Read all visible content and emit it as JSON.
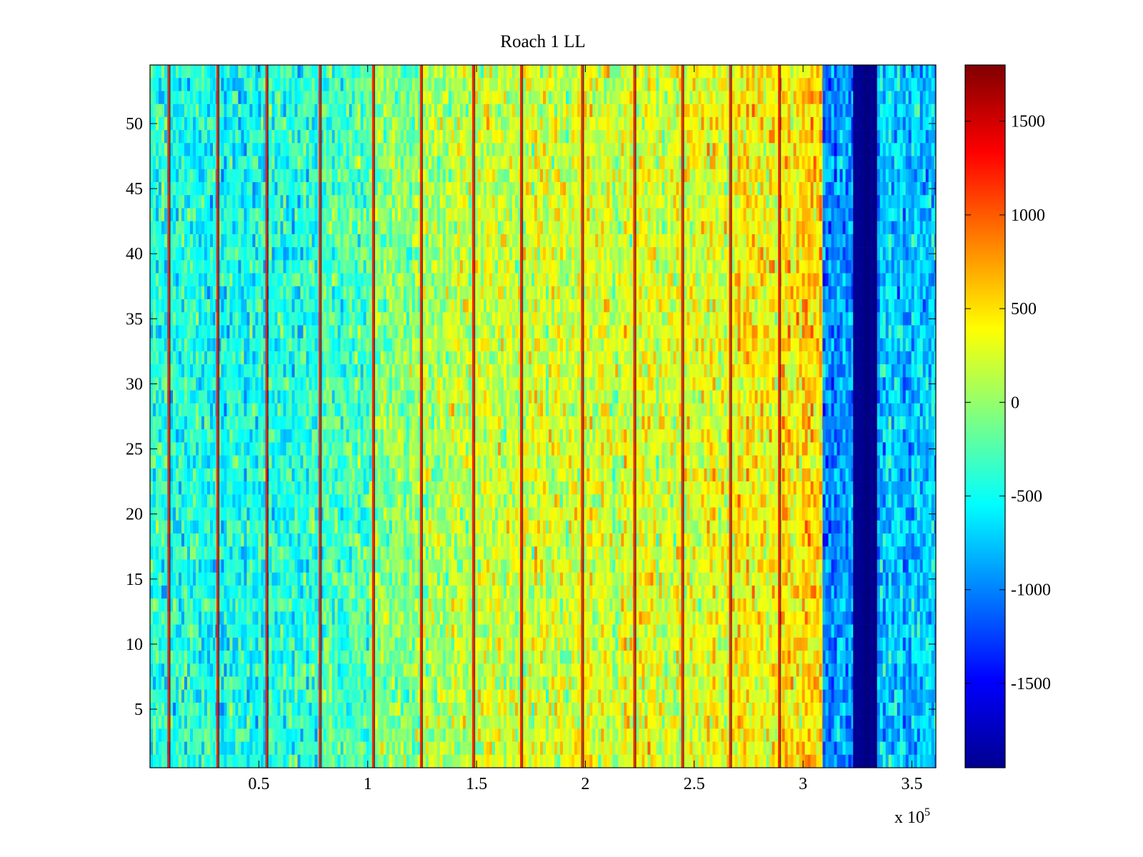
{
  "chart_data": {
    "type": "heatmap",
    "title": "Roach 1 LL",
    "xlabel": "",
    "ylabel": "",
    "x_range": [
      0,
      361000
    ],
    "y_range": [
      0.5,
      54.5
    ],
    "x_ticks": [
      0.5,
      1,
      1.5,
      2,
      2.5,
      3,
      3.5
    ],
    "x_tick_labels": [
      "0.5",
      "1",
      "1.5",
      "2",
      "2.5",
      "3",
      "3.5"
    ],
    "x_exponent_prefix": "x 10",
    "x_exponent": "5",
    "x_scale": 100000,
    "y_ticks": [
      5,
      10,
      15,
      20,
      25,
      30,
      35,
      40,
      45,
      50
    ],
    "y_tick_labels": [
      "5",
      "10",
      "15",
      "20",
      "25",
      "30",
      "35",
      "40",
      "45",
      "50"
    ],
    "colorbar": {
      "colormap": "jet",
      "range": [
        -1950,
        1800
      ],
      "ticks": [
        1500,
        1000,
        500,
        0,
        -500,
        -1000,
        -1500
      ],
      "tick_labels": [
        "1500",
        "1000",
        "500",
        "0",
        "-500",
        "-1000",
        "-1500"
      ]
    },
    "rows": 54,
    "column_segments": [
      {
        "x_start": 0,
        "x_end": 30000,
        "mean_value": -450
      },
      {
        "x_start": 30000,
        "x_end": 52000,
        "mean_value": -500
      },
      {
        "x_start": 52000,
        "x_end": 77000,
        "mean_value": -430
      },
      {
        "x_start": 77000,
        "x_end": 102000,
        "mean_value": -250
      },
      {
        "x_start": 102000,
        "x_end": 124000,
        "mean_value": -50
      },
      {
        "x_start": 124000,
        "x_end": 148000,
        "mean_value": 100
      },
      {
        "x_start": 148000,
        "x_end": 170000,
        "mean_value": 200
      },
      {
        "x_start": 170000,
        "x_end": 198000,
        "mean_value": 250
      },
      {
        "x_start": 198000,
        "x_end": 222000,
        "mean_value": 250
      },
      {
        "x_start": 222000,
        "x_end": 244000,
        "mean_value": 250
      },
      {
        "x_start": 244000,
        "x_end": 266000,
        "mean_value": 300
      },
      {
        "x_start": 266000,
        "x_end": 289000,
        "mean_value": 400
      },
      {
        "x_start": 289000,
        "x_end": 309000,
        "mean_value": 500
      },
      {
        "x_start": 309000,
        "x_end": 323000,
        "mean_value": -900
      },
      {
        "x_start": 323000,
        "x_end": 334000,
        "mean_value": -1950
      },
      {
        "x_start": 334000,
        "x_end": 361000,
        "mean_value": -750
      }
    ],
    "stripe_x_positions": [
      8500,
      31000,
      53500,
      78000,
      102500,
      124500,
      148500,
      170500,
      198500,
      222500,
      244500,
      266500,
      289000
    ],
    "stripe_value": 1300
  }
}
